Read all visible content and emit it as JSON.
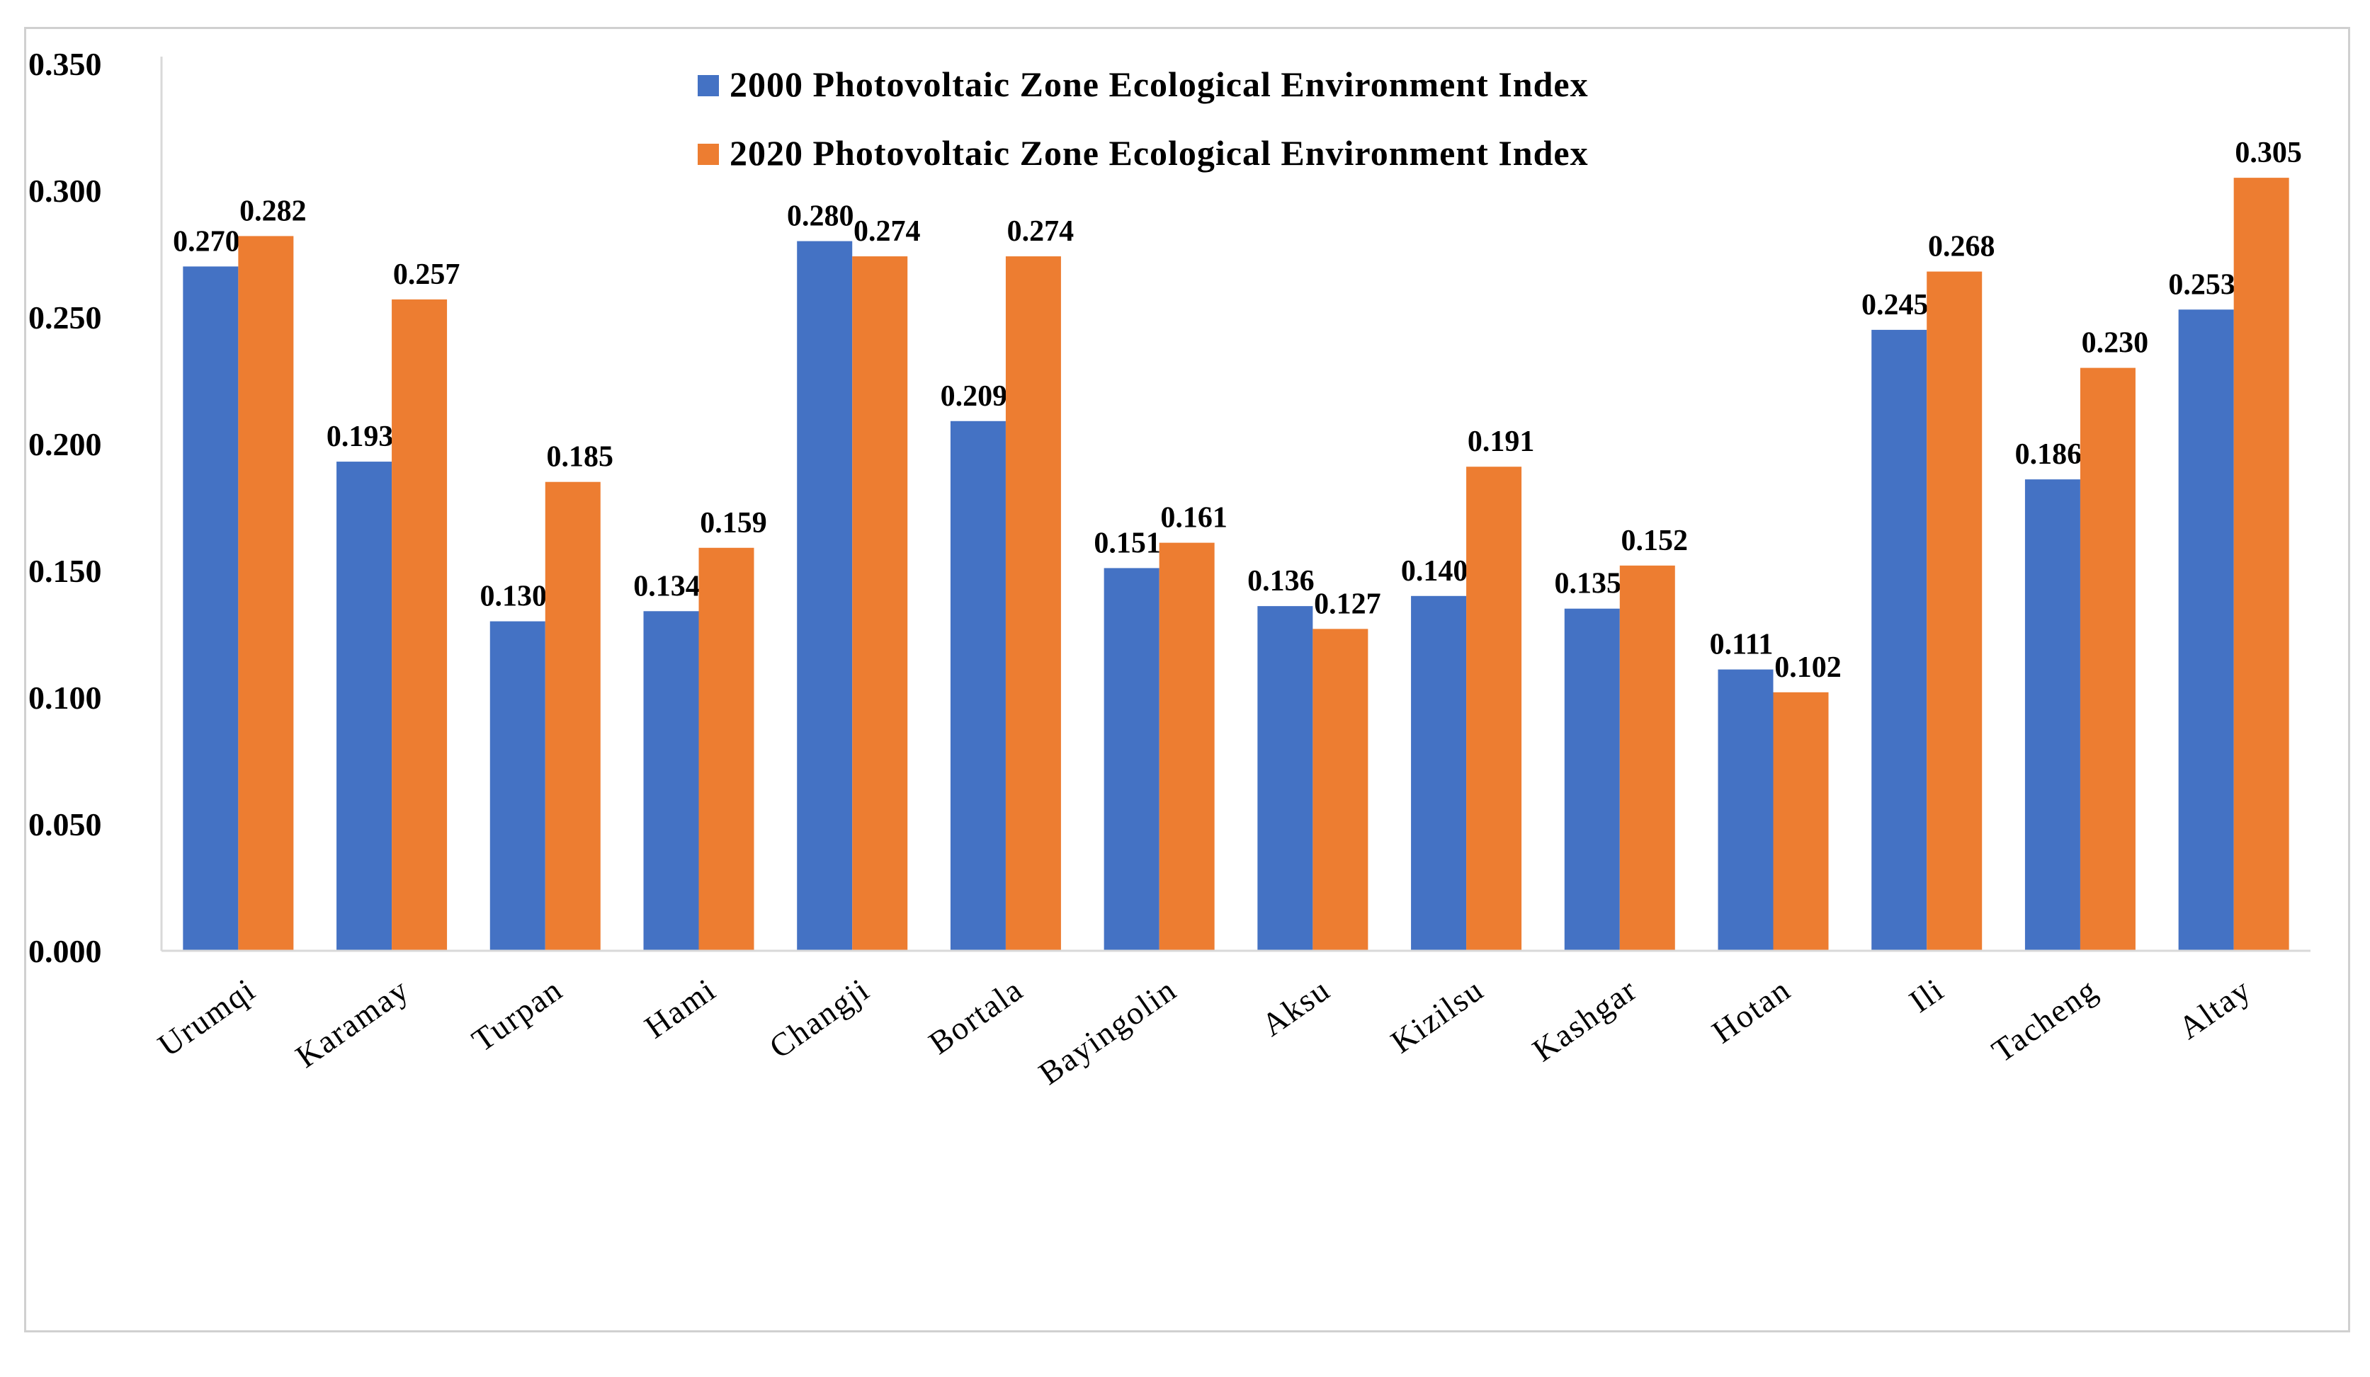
{
  "chart_data": {
    "type": "bar",
    "title": "",
    "xlabel": "",
    "ylabel": "",
    "ylim": [
      0,
      0.35
    ],
    "yticks": [
      "0.000",
      "0.050",
      "0.100",
      "0.150",
      "0.200",
      "0.250",
      "0.300",
      "0.350"
    ],
    "grid": false,
    "legend_position": "top",
    "categories": [
      "Urumqi",
      "Karamay",
      "Turpan",
      "Hami",
      "Changji",
      "Bortala",
      "Bayingolin",
      "Aksu",
      "Kizilsu",
      "Kashgar",
      "Hotan",
      "Ili",
      "Tacheng",
      "Altay"
    ],
    "series": [
      {
        "name": "2000 Photovoltaic Zone Ecological Environment Index",
        "color": "#4472C4",
        "values": [
          0.27,
          0.193,
          0.13,
          0.134,
          0.28,
          0.209,
          0.151,
          0.136,
          0.14,
          0.135,
          0.111,
          0.245,
          0.186,
          0.253
        ],
        "labels": [
          "0.270",
          "0.193",
          "0.130",
          "0.134",
          "0.280",
          "0.209",
          "0.151",
          "0.136",
          "0.140",
          "0.135",
          "0.111",
          "0.245",
          "0.186",
          "0.253"
        ]
      },
      {
        "name": "2020 Photovoltaic Zone Ecological Environment Index",
        "color": "#ED7D31",
        "values": [
          0.282,
          0.257,
          0.185,
          0.159,
          0.274,
          0.274,
          0.161,
          0.127,
          0.191,
          0.152,
          0.102,
          0.268,
          0.23,
          0.305
        ],
        "labels": [
          "0.282",
          "0.257",
          "0.185",
          "0.159",
          "0.274",
          "0.274",
          "0.161",
          "0.127",
          "0.191",
          "0.152",
          "0.102",
          "0.268",
          "0.230",
          "0.305"
        ]
      }
    ]
  }
}
